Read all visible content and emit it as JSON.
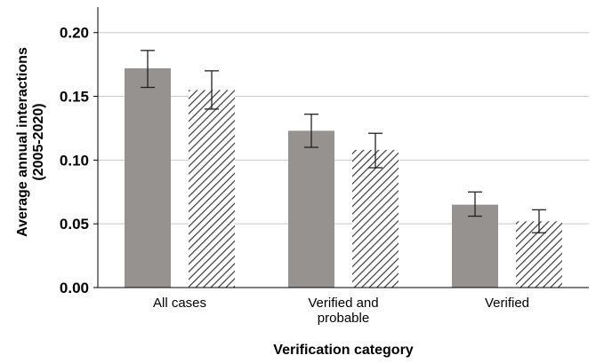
{
  "chart_data": {
    "type": "bar",
    "title": "",
    "xlabel": "Verification category",
    "ylabel_lines": [
      "Average annual interactions",
      "(2005-2020)"
    ],
    "categories": [
      {
        "lines": [
          "All cases"
        ]
      },
      {
        "lines": [
          "Verified and",
          "probable"
        ]
      },
      {
        "lines": [
          "Verified"
        ]
      }
    ],
    "ylim": [
      0,
      0.22
    ],
    "yticks": [
      "0.00",
      "0.05",
      "0.10",
      "0.15",
      "0.20"
    ],
    "ytick_values": [
      0,
      0.05,
      0.1,
      0.15,
      0.2
    ],
    "grid": true,
    "legend": "none",
    "series": [
      {
        "fill": "solid",
        "color": "#969290",
        "values": [
          0.172,
          0.123,
          0.065
        ],
        "err_low": [
          0.157,
          0.11,
          0.056
        ],
        "err_high": [
          0.186,
          0.136,
          0.075
        ]
      },
      {
        "fill": "hatched",
        "color": "#3a3a3a",
        "values": [
          0.155,
          0.108,
          0.052
        ],
        "err_low": [
          0.14,
          0.094,
          0.043
        ],
        "err_high": [
          0.17,
          0.121,
          0.061
        ]
      }
    ]
  }
}
